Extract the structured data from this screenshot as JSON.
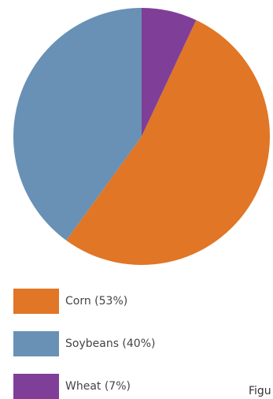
{
  "chart_data": {
    "type": "pie",
    "slices": [
      {
        "label": "Wheat",
        "value": 7,
        "color": "#7f3f98"
      },
      {
        "label": "Corn",
        "value": 53,
        "color": "#e07626"
      },
      {
        "label": "Soybeans",
        "value": 40,
        "color": "#6891b5"
      }
    ],
    "start": "top",
    "direction": "clockwise",
    "legend_position": "bottom-left"
  },
  "legend": [
    {
      "label": "Corn (53%)",
      "color": "#e07626"
    },
    {
      "label": "Soybeans (40%)",
      "color": "#6891b5"
    },
    {
      "label": "Wheat (7%)",
      "color": "#7f3f98"
    }
  ],
  "caption_fragment": "Figu"
}
